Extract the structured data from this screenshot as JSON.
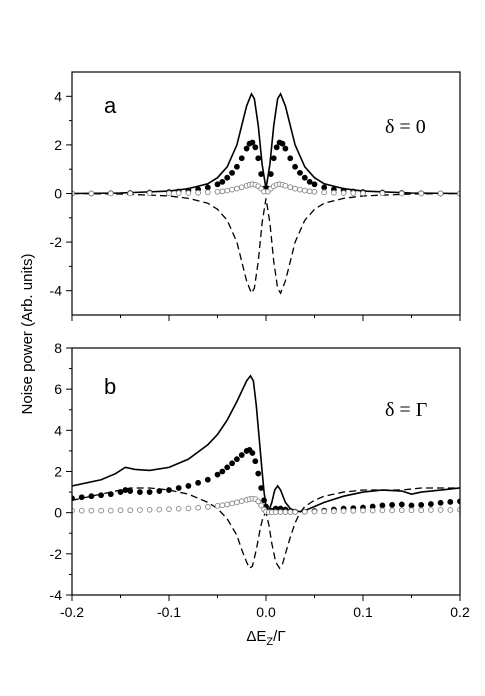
{
  "figure": {
    "ylabel": "Noise power (Arb. units)",
    "xlabel_main": "ΔE",
    "xlabel_sub": "Z",
    "xlabel_tail": "/Γ"
  },
  "chart_data": [
    {
      "type": "line",
      "panel_label": "a",
      "annotation": "δ = 0",
      "xlim": [
        -0.2,
        0.2
      ],
      "ylim": [
        -5,
        5
      ],
      "yticks": [
        -4,
        -2,
        0,
        2,
        4
      ],
      "xticks": [
        -0.2,
        -0.1,
        0.0,
        0.1,
        0.2
      ],
      "grid": false,
      "series": [
        {
          "style": "solid",
          "x": [
            -0.2,
            -0.15,
            -0.1,
            -0.08,
            -0.06,
            -0.05,
            -0.04,
            -0.03,
            -0.025,
            -0.02,
            -0.015,
            -0.012,
            -0.008,
            -0.004,
            0.0,
            0.004,
            0.008,
            0.012,
            0.015,
            0.02,
            0.025,
            0.03,
            0.04,
            0.05,
            0.06,
            0.08,
            0.1,
            0.15,
            0.2
          ],
          "y": [
            0.0,
            0.02,
            0.1,
            0.2,
            0.4,
            0.65,
            1.1,
            2.0,
            2.8,
            3.6,
            4.1,
            3.9,
            2.8,
            1.2,
            0.2,
            1.2,
            2.8,
            3.9,
            4.1,
            3.6,
            2.8,
            2.0,
            1.1,
            0.65,
            0.4,
            0.2,
            0.1,
            0.02,
            0.0
          ]
        },
        {
          "style": "dashed",
          "x": [
            -0.2,
            -0.15,
            -0.1,
            -0.08,
            -0.06,
            -0.05,
            -0.04,
            -0.03,
            -0.025,
            -0.02,
            -0.015,
            -0.012,
            -0.008,
            -0.004,
            0.0,
            0.004,
            0.008,
            0.012,
            0.015,
            0.02,
            0.025,
            0.03,
            0.04,
            0.05,
            0.06,
            0.08,
            0.1,
            0.15,
            0.2
          ],
          "y": [
            0.0,
            -0.02,
            -0.1,
            -0.2,
            -0.4,
            -0.65,
            -1.1,
            -2.0,
            -2.8,
            -3.6,
            -4.1,
            -3.9,
            -2.8,
            -1.2,
            -0.2,
            -1.2,
            -2.8,
            -3.9,
            -4.1,
            -3.6,
            -2.8,
            -2.0,
            -1.1,
            -0.65,
            -0.4,
            -0.2,
            -0.1,
            -0.02,
            0.0
          ]
        },
        {
          "style": "filled-circles",
          "x": [
            -0.2,
            -0.18,
            -0.16,
            -0.14,
            -0.12,
            -0.1,
            -0.09,
            -0.08,
            -0.07,
            -0.06,
            -0.05,
            -0.045,
            -0.04,
            -0.035,
            -0.03,
            -0.025,
            -0.02,
            -0.017,
            -0.014,
            -0.011,
            -0.008,
            -0.005,
            -0.002,
            0.002,
            0.005,
            0.008,
            0.011,
            0.014,
            0.017,
            0.02,
            0.025,
            0.03,
            0.035,
            0.04,
            0.045,
            0.05,
            0.06,
            0.07,
            0.08,
            0.09,
            0.1,
            0.12,
            0.14,
            0.16,
            0.18,
            0.2
          ],
          "y": [
            0.0,
            0.0,
            0.01,
            0.02,
            0.04,
            0.06,
            0.08,
            0.12,
            0.17,
            0.25,
            0.38,
            0.48,
            0.65,
            0.85,
            1.1,
            1.45,
            1.85,
            2.05,
            2.1,
            1.9,
            1.45,
            0.8,
            0.2,
            0.2,
            0.8,
            1.45,
            1.9,
            2.1,
            2.05,
            1.85,
            1.45,
            1.1,
            0.85,
            0.65,
            0.48,
            0.38,
            0.25,
            0.17,
            0.12,
            0.08,
            0.06,
            0.04,
            0.02,
            0.01,
            0.0,
            0.0
          ]
        },
        {
          "style": "open-circles",
          "x": [
            -0.2,
            -0.18,
            -0.16,
            -0.14,
            -0.12,
            -0.1,
            -0.09,
            -0.08,
            -0.07,
            -0.06,
            -0.05,
            -0.045,
            -0.04,
            -0.035,
            -0.03,
            -0.025,
            -0.02,
            -0.017,
            -0.014,
            -0.011,
            -0.008,
            -0.005,
            -0.002,
            0.002,
            0.005,
            0.008,
            0.011,
            0.014,
            0.017,
            0.02,
            0.025,
            0.03,
            0.035,
            0.04,
            0.045,
            0.05,
            0.06,
            0.07,
            0.08,
            0.09,
            0.1,
            0.12,
            0.14,
            0.16,
            0.18,
            0.2
          ],
          "y": [
            0.0,
            0.0,
            0.0,
            0.0,
            0.01,
            0.01,
            0.02,
            0.02,
            0.03,
            0.05,
            0.07,
            0.09,
            0.12,
            0.16,
            0.2,
            0.26,
            0.32,
            0.36,
            0.38,
            0.36,
            0.3,
            0.2,
            0.08,
            0.08,
            0.2,
            0.3,
            0.36,
            0.38,
            0.36,
            0.32,
            0.26,
            0.2,
            0.16,
            0.12,
            0.09,
            0.07,
            0.05,
            0.03,
            0.02,
            0.02,
            0.01,
            0.01,
            0.0,
            0.0,
            0.0,
            0.0
          ]
        }
      ]
    },
    {
      "type": "line",
      "panel_label": "b",
      "annotation": "δ = Γ",
      "xlim": [
        -0.2,
        0.2
      ],
      "ylim": [
        -4,
        8
      ],
      "yticks": [
        -4,
        -2,
        0,
        2,
        4,
        6,
        8
      ],
      "xticks": [
        -0.2,
        -0.1,
        0.0,
        0.1,
        0.2
      ],
      "grid": false,
      "series": [
        {
          "style": "solid",
          "x": [
            -0.2,
            -0.17,
            -0.155,
            -0.145,
            -0.135,
            -0.12,
            -0.1,
            -0.08,
            -0.06,
            -0.05,
            -0.04,
            -0.03,
            -0.025,
            -0.02,
            -0.016,
            -0.013,
            -0.01,
            -0.007,
            -0.004,
            -0.002,
            0.0,
            0.003,
            0.006,
            0.009,
            0.012,
            0.015,
            0.02,
            0.025,
            0.03,
            0.035,
            0.04,
            0.05,
            0.06,
            0.08,
            0.1,
            0.12,
            0.14,
            0.15,
            0.16,
            0.18,
            0.2
          ],
          "y": [
            1.3,
            1.6,
            1.9,
            2.2,
            2.1,
            2.05,
            2.2,
            2.6,
            3.3,
            3.8,
            4.5,
            5.4,
            5.9,
            6.4,
            6.65,
            6.4,
            5.2,
            3.6,
            2.0,
            1.0,
            0.3,
            0.1,
            0.5,
            1.1,
            1.3,
            1.1,
            0.5,
            0.2,
            0.1,
            0.05,
            0.1,
            0.3,
            0.5,
            0.8,
            1.0,
            1.1,
            1.05,
            0.9,
            1.0,
            1.1,
            1.2
          ]
        },
        {
          "style": "dashed",
          "x": [
            -0.2,
            -0.18,
            -0.16,
            -0.15,
            -0.14,
            -0.12,
            -0.1,
            -0.08,
            -0.06,
            -0.05,
            -0.04,
            -0.03,
            -0.025,
            -0.02,
            -0.017,
            -0.014,
            -0.01,
            -0.006,
            -0.003,
            0.0,
            0.003,
            0.006,
            0.01,
            0.014,
            0.017,
            0.02,
            0.025,
            0.03,
            0.035,
            0.04,
            0.05,
            0.06,
            0.08,
            0.1,
            0.12,
            0.14,
            0.15,
            0.16,
            0.18,
            0.2
          ],
          "y": [
            0.6,
            0.8,
            1.0,
            1.1,
            1.2,
            1.2,
            1.1,
            0.9,
            0.5,
            0.2,
            -0.3,
            -1.1,
            -1.8,
            -2.4,
            -2.7,
            -2.6,
            -1.8,
            -0.8,
            -0.2,
            0.0,
            -0.6,
            -1.5,
            -2.4,
            -2.7,
            -2.5,
            -2.0,
            -1.2,
            -0.5,
            0.0,
            0.3,
            0.6,
            0.8,
            1.0,
            1.1,
            1.1,
            1.1,
            1.15,
            1.2,
            1.2,
            1.2
          ]
        },
        {
          "style": "filled-circles",
          "x": [
            -0.2,
            -0.19,
            -0.18,
            -0.17,
            -0.16,
            -0.15,
            -0.145,
            -0.14,
            -0.13,
            -0.12,
            -0.11,
            -0.1,
            -0.09,
            -0.08,
            -0.07,
            -0.06,
            -0.05,
            -0.045,
            -0.04,
            -0.035,
            -0.03,
            -0.025,
            -0.02,
            -0.017,
            -0.014,
            -0.011,
            -0.008,
            -0.005,
            -0.002,
            0.0,
            0.003,
            0.006,
            0.01,
            0.015,
            0.02,
            0.025,
            0.03,
            0.04,
            0.05,
            0.06,
            0.07,
            0.08,
            0.09,
            0.1,
            0.11,
            0.12,
            0.13,
            0.14,
            0.15,
            0.16,
            0.17,
            0.18,
            0.19,
            0.2
          ],
          "y": [
            0.7,
            0.75,
            0.8,
            0.85,
            0.9,
            1.0,
            1.1,
            1.05,
            1.0,
            1.0,
            1.05,
            1.1,
            1.2,
            1.3,
            1.45,
            1.6,
            1.85,
            2.0,
            2.2,
            2.4,
            2.6,
            2.8,
            3.0,
            3.05,
            2.9,
            2.5,
            1.9,
            1.2,
            0.6,
            0.3,
            0.1,
            0.1,
            0.2,
            0.2,
            0.15,
            0.08,
            0.05,
            0.05,
            0.08,
            0.1,
            0.15,
            0.2,
            0.22,
            0.25,
            0.3,
            0.35,
            0.38,
            0.4,
            0.35,
            0.38,
            0.42,
            0.48,
            0.52,
            0.55
          ]
        },
        {
          "style": "open-circles",
          "x": [
            -0.2,
            -0.19,
            -0.18,
            -0.17,
            -0.16,
            -0.15,
            -0.14,
            -0.13,
            -0.12,
            -0.11,
            -0.1,
            -0.09,
            -0.08,
            -0.07,
            -0.06,
            -0.05,
            -0.045,
            -0.04,
            -0.035,
            -0.03,
            -0.025,
            -0.02,
            -0.017,
            -0.014,
            -0.011,
            -0.008,
            -0.005,
            -0.002,
            0.0,
            0.003,
            0.006,
            0.01,
            0.015,
            0.02,
            0.025,
            0.03,
            0.04,
            0.05,
            0.06,
            0.07,
            0.08,
            0.09,
            0.1,
            0.11,
            0.12,
            0.13,
            0.14,
            0.15,
            0.16,
            0.17,
            0.18,
            0.19,
            0.2
          ],
          "y": [
            0.1,
            0.1,
            0.1,
            0.1,
            0.1,
            0.12,
            0.12,
            0.13,
            0.14,
            0.15,
            0.17,
            0.19,
            0.21,
            0.24,
            0.28,
            0.33,
            0.36,
            0.4,
            0.45,
            0.5,
            0.56,
            0.62,
            0.66,
            0.68,
            0.66,
            0.55,
            0.35,
            0.15,
            0.05,
            0.02,
            0.02,
            0.03,
            0.03,
            0.03,
            0.03,
            0.03,
            0.04,
            0.05,
            0.06,
            0.07,
            0.08,
            0.09,
            0.1,
            0.1,
            0.11,
            0.11,
            0.12,
            0.12,
            0.12,
            0.13,
            0.13,
            0.13,
            0.14
          ]
        }
      ]
    }
  ]
}
